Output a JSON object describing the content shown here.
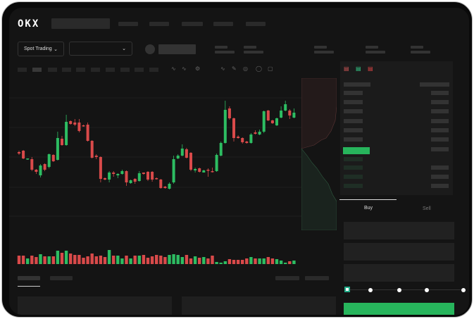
{
  "header": {
    "logo": "OKX",
    "nav_placeholders": 4
  },
  "market": {
    "mode_label": "Spot Trading"
  },
  "trade": {
    "buy_label": "Buy",
    "sell_label": "Sell",
    "slider_fraction": 0
  },
  "colors": {
    "up": "#2dbd62",
    "down": "#d94a4a",
    "accent": "#27b55c",
    "bg": "#141414"
  },
  "icons": [
    "chevron-down-icon",
    "line-tool-icon",
    "pencil-icon",
    "settings-icon",
    "fullscreen-icon",
    "orderbook-both-icon",
    "orderbook-bids-icon",
    "orderbook-asks-icon"
  ],
  "chart_data": {
    "type": "candlestick",
    "candles": [
      [
        95,
        93,
        97,
        91
      ],
      [
        97,
        86,
        98,
        85
      ],
      [
        85,
        86,
        86,
        84
      ],
      [
        85,
        70,
        88,
        68
      ],
      [
        70,
        67,
        71,
        64
      ],
      [
        62,
        76,
        78,
        59
      ],
      [
        78,
        70,
        79,
        68
      ],
      [
        74,
        92,
        93,
        72
      ],
      [
        91,
        82,
        92,
        81
      ],
      [
        84,
        115,
        124,
        83
      ],
      [
        114,
        105,
        118,
        104
      ],
      [
        105,
        138,
        148,
        104
      ],
      [
        139,
        135,
        140,
        134
      ],
      [
        137,
        134,
        142,
        132
      ],
      [
        137,
        125,
        142,
        123
      ],
      [
        133,
        132,
        134,
        131
      ],
      [
        134,
        111,
        137,
        110
      ],
      [
        111,
        87,
        112,
        86
      ],
      [
        90,
        88,
        92,
        85
      ],
      [
        88,
        57,
        89,
        52
      ],
      [
        58,
        56,
        59,
        55
      ],
      [
        56,
        66,
        68,
        52
      ],
      [
        66,
        64,
        68,
        60
      ],
      [
        62,
        64,
        65,
        58
      ],
      [
        64,
        68,
        70,
        63
      ],
      [
        68,
        52,
        69,
        47
      ],
      [
        51,
        55,
        56,
        50
      ],
      [
        57,
        53,
        58,
        50
      ],
      [
        54,
        65,
        68,
        53
      ],
      [
        66,
        64,
        66,
        63
      ],
      [
        67,
        56,
        68,
        54
      ],
      [
        67,
        56,
        68,
        53
      ],
      [
        58,
        57,
        59,
        56
      ],
      [
        56,
        44,
        57,
        43
      ],
      [
        46,
        44,
        47,
        43
      ],
      [
        43,
        50,
        52,
        42
      ],
      [
        52,
        85,
        90,
        50
      ],
      [
        86,
        90,
        92,
        85
      ],
      [
        90,
        100,
        106,
        89
      ],
      [
        99,
        87,
        101,
        86
      ],
      [
        94,
        70,
        95,
        68
      ],
      [
        69,
        71,
        73,
        66
      ],
      [
        72,
        67,
        73,
        66
      ],
      [
        66,
        69,
        70,
        66
      ],
      [
        70,
        69,
        72,
        60
      ],
      [
        68,
        67,
        73,
        66
      ],
      [
        68,
        91,
        93,
        67
      ],
      [
        90,
        108,
        110,
        89
      ],
      [
        108,
        155,
        168,
        107
      ],
      [
        157,
        143,
        160,
        141
      ],
      [
        143,
        115,
        144,
        110
      ],
      [
        117,
        115,
        119,
        114
      ],
      [
        115,
        109,
        116,
        107
      ],
      [
        110,
        108,
        111,
        107
      ],
      [
        108,
        120,
        122,
        107
      ],
      [
        123,
        121,
        126,
        120
      ],
      [
        120,
        124,
        127,
        119
      ],
      [
        124,
        153,
        154,
        122
      ],
      [
        154,
        140,
        155,
        139
      ],
      [
        140,
        136,
        141,
        135
      ],
      [
        133,
        143,
        144,
        132
      ],
      [
        144,
        154,
        160,
        143
      ],
      [
        154,
        163,
        168,
        153
      ],
      [
        154,
        147,
        156,
        142
      ],
      [
        144,
        151,
        157,
        143
      ]
    ],
    "volumes": [
      12,
      12,
      8,
      12,
      10,
      14,
      11,
      11,
      11,
      19,
      16,
      19,
      15,
      13,
      13,
      9,
      11,
      15,
      11,
      12,
      10,
      20,
      12,
      12,
      8,
      12,
      8,
      12,
      12,
      13,
      9,
      11,
      13,
      12,
      10,
      13,
      14,
      13,
      10,
      13,
      8,
      11,
      9,
      10,
      8,
      12,
      3,
      2,
      4,
      7,
      6,
      6,
      6,
      8,
      10,
      8,
      8,
      8,
      10,
      8,
      7,
      5,
      2,
      4,
      5
    ]
  }
}
